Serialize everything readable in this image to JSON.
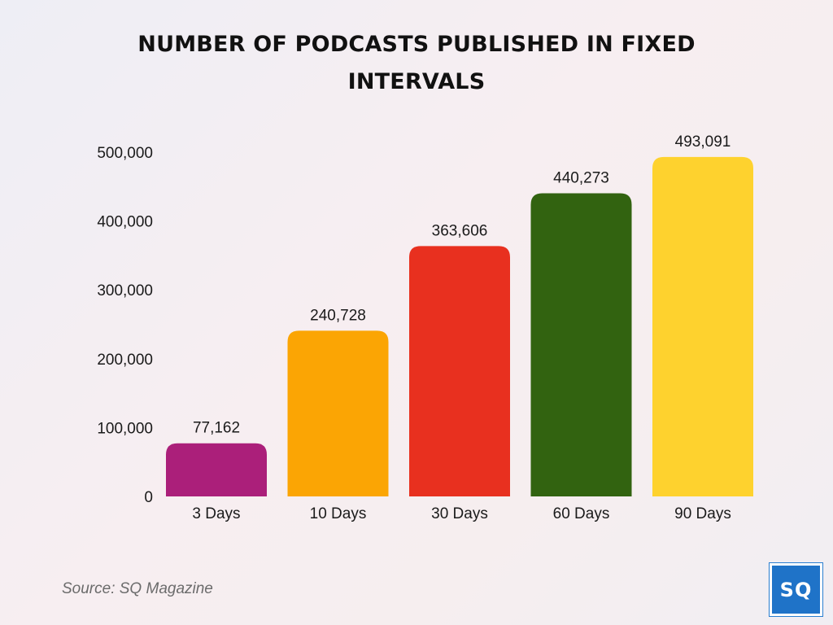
{
  "chart_data": {
    "type": "bar",
    "title": "NUMBER OF PODCASTS PUBLISHED IN FIXED INTERVALS",
    "categories": [
      "3 Days",
      "10 Days",
      "30 Days",
      "60 Days",
      "90 Days"
    ],
    "values": [
      77162,
      240728,
      363606,
      440273,
      493091
    ],
    "value_labels": [
      "77,162",
      "240,728",
      "363,606",
      "440,273",
      "493,091"
    ],
    "colors": [
      "#ab1f7a",
      "#fba504",
      "#e8301f",
      "#326310",
      "#fed22e"
    ],
    "yticks": [
      0,
      100000,
      200000,
      300000,
      400000,
      500000
    ],
    "ytick_labels": [
      "0",
      "100,000",
      "200,000",
      "300,000",
      "400,000",
      "500,000"
    ],
    "ylim": [
      0,
      500000
    ],
    "xlabel": "",
    "ylabel": "",
    "grid": false,
    "legend": "none"
  },
  "source": "Source: SQ Magazine",
  "logo_text": "SQ"
}
